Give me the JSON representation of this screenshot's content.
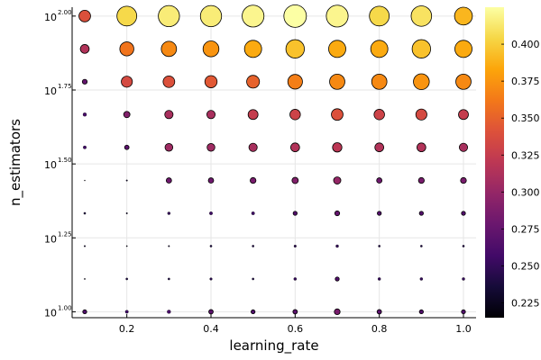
{
  "chart_data": {
    "type": "scatter",
    "xlabel": "learning_rate",
    "ylabel": "n_estimators",
    "x": [
      0.1,
      0.2,
      0.3,
      0.4,
      0.5,
      0.6,
      0.7,
      0.8,
      0.9,
      1.0
    ],
    "y_log10": [
      1.0,
      1.111,
      1.222,
      1.333,
      1.444,
      1.556,
      1.667,
      1.778,
      1.889,
      2.0
    ],
    "xlim": [
      0.07,
      1.03
    ],
    "ylim_log10": [
      0.98,
      2.03
    ],
    "xticks": [
      {
        "value": 0.2,
        "label": "0.2"
      },
      {
        "value": 0.4,
        "label": "0.4"
      },
      {
        "value": 0.6,
        "label": "0.6"
      },
      {
        "value": 0.8,
        "label": "0.8"
      },
      {
        "value": 1.0,
        "label": "1.0"
      }
    ],
    "yticks": [
      {
        "value": 1.0,
        "base": "10",
        "exp": "1.00"
      },
      {
        "value": 1.25,
        "base": "10",
        "exp": "1.25"
      },
      {
        "value": 1.5,
        "base": "10",
        "exp": "1.50"
      },
      {
        "value": 1.75,
        "base": "10",
        "exp": "1.75"
      },
      {
        "value": 2.0,
        "base": "10",
        "exp": "2.00"
      }
    ],
    "colorbar": {
      "range": [
        0.215,
        0.425
      ],
      "ticks": [
        "0.225",
        "0.250",
        "0.275",
        "0.300",
        "0.325",
        "0.350",
        "0.375",
        "0.400"
      ],
      "tick_values": [
        0.225,
        0.25,
        0.275,
        0.3,
        0.325,
        0.35,
        0.375,
        0.4
      ],
      "colormap": "inferno"
    },
    "values": [
      [
        0.265,
        0.255,
        0.26,
        0.27,
        0.265,
        0.27,
        0.285,
        0.27,
        0.265,
        0.265
      ],
      [
        0.225,
        0.24,
        0.24,
        0.245,
        0.24,
        0.25,
        0.265,
        0.25,
        0.25,
        0.25
      ],
      [
        0.23,
        0.225,
        0.23,
        0.24,
        0.24,
        0.245,
        0.25,
        0.24,
        0.24,
        0.24
      ],
      [
        0.24,
        0.23,
        0.25,
        0.255,
        0.255,
        0.265,
        0.275,
        0.265,
        0.265,
        0.265
      ],
      [
        0.22,
        0.23,
        0.28,
        0.28,
        0.285,
        0.29,
        0.3,
        0.28,
        0.285,
        0.285
      ],
      [
        0.255,
        0.27,
        0.305,
        0.305,
        0.31,
        0.315,
        0.32,
        0.315,
        0.315,
        0.31
      ],
      [
        0.26,
        0.29,
        0.31,
        0.31,
        0.325,
        0.33,
        0.34,
        0.33,
        0.335,
        0.325
      ],
      [
        0.275,
        0.335,
        0.34,
        0.345,
        0.35,
        0.365,
        0.37,
        0.37,
        0.375,
        0.37
      ],
      [
        0.315,
        0.36,
        0.37,
        0.375,
        0.385,
        0.395,
        0.385,
        0.385,
        0.395,
        0.385
      ],
      [
        0.34,
        0.405,
        0.415,
        0.415,
        0.42,
        0.425,
        0.42,
        0.405,
        0.41,
        0.39
      ]
    ],
    "grid": true,
    "legend": "none"
  }
}
